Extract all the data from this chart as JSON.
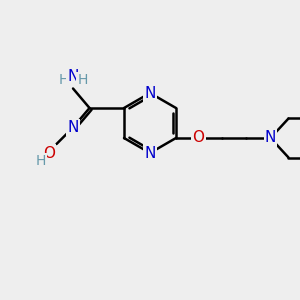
{
  "bg_color": "#eeeeee",
  "atom_colors": {
    "C": "#000000",
    "N": "#0000cc",
    "O": "#cc0000",
    "H": "#6699aa"
  },
  "bond_color": "#000000",
  "bond_width": 1.8,
  "font_size": 11,
  "figsize": [
    3.0,
    3.0
  ],
  "dpi": 100
}
